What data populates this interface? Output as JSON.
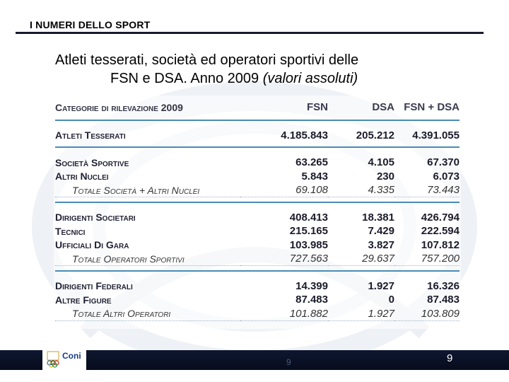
{
  "header": {
    "section": "I NUMERI DELLO SPORT"
  },
  "title": {
    "line1": "Atleti tesserati, società ed operatori sportivi delle",
    "line2_plain": "FSN e DSA. Anno 2009 ",
    "line2_italic": "(valori assoluti)"
  },
  "table": {
    "columns": [
      "Categorie di rilevazione 2009",
      "FSN",
      "DSA",
      "FSN + DSA"
    ],
    "rows": [
      {
        "label": "Atleti Tesserati",
        "fsn": "4.185.843",
        "dsa": "205.212",
        "total": "4.391.055"
      },
      {
        "label": "Società Sportive",
        "fsn": "63.265",
        "dsa": "4.105",
        "total": "67.370"
      },
      {
        "label": "Altri Nuclei",
        "fsn": "5.843",
        "dsa": "230",
        "total": "6.073"
      },
      {
        "label": "Totale Società + Altri Nuclei",
        "fsn": "69.108",
        "dsa": "4.335",
        "total": "73.443"
      },
      {
        "label": "Dirigenti Societari",
        "fsn": "408.413",
        "dsa": "18.381",
        "total": "426.794"
      },
      {
        "label": "Tecnici",
        "fsn": "215.165",
        "dsa": "7.429",
        "total": "222.594"
      },
      {
        "label": "Ufficiali Di Gara",
        "fsn": "103.985",
        "dsa": "3.827",
        "total": "107.812"
      },
      {
        "label": "Totale Operatori Sportivi",
        "fsn": "727.563",
        "dsa": "29.637",
        "total": "757.200"
      },
      {
        "label": "Dirigenti Federali",
        "fsn": "14.399",
        "dsa": "1.927",
        "total": "16.326"
      },
      {
        "label": "Altre Figure",
        "fsn": "87.483",
        "dsa": "0",
        "total": "87.483"
      },
      {
        "label": "Totale Altri Operatori",
        "fsn": "101.882",
        "dsa": "1.927",
        "total": "103.809"
      }
    ]
  },
  "footer": {
    "logo_text": "Coni",
    "ghost_page": "9",
    "page_number": "9"
  },
  "colors": {
    "footer_bar": "#0e1730",
    "rule_blue": "#4a8bb6",
    "logo_blue": "#1c3b8a"
  },
  "icons": {
    "logo": "coni-olympic-rings-logo",
    "background": "sport-silhouette-watermark"
  }
}
